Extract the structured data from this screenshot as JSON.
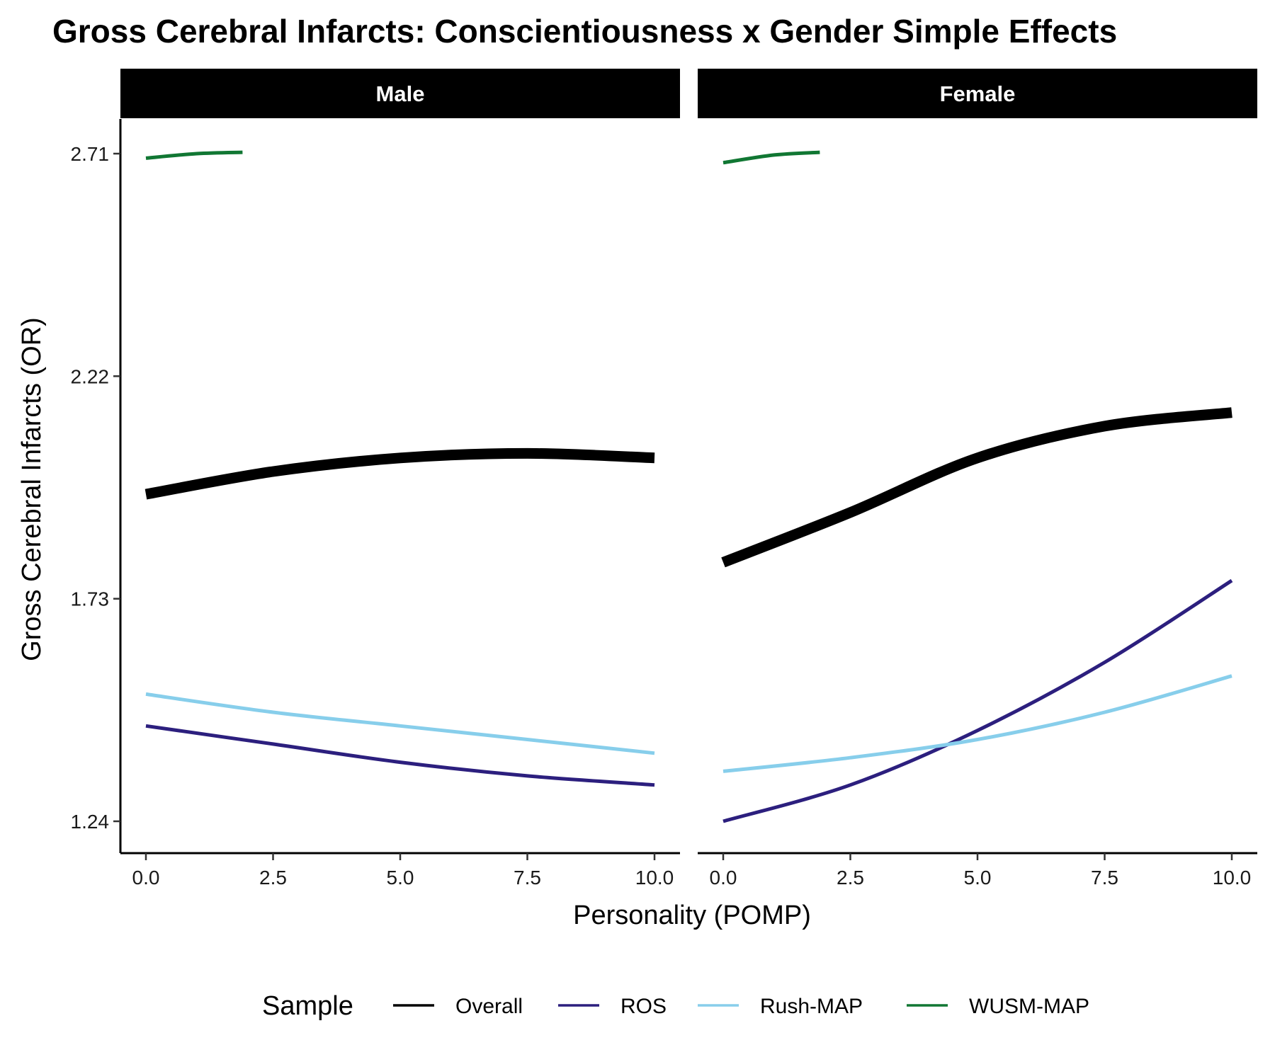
{
  "chart_data": {
    "type": "line",
    "title": "Gross Cerebral Infarcts: Conscientiousness x Gender Simple Effects",
    "xlabel": "Personality (POMP)",
    "ylabel": "Gross Cerebral Infarcts (OR)",
    "xlim": [
      0,
      10
    ],
    "ylim": [
      1.24,
      2.71
    ],
    "x_ticks": [
      "0.0",
      "2.5",
      "5.0",
      "7.5",
      "10.0"
    ],
    "y_ticks": [
      "1.24",
      "1.73",
      "2.22",
      "2.71"
    ],
    "legend": {
      "title": "Sample",
      "position": "bottom"
    },
    "panels": [
      {
        "name": "Male",
        "series": [
          {
            "name": "Overall",
            "color": "#000000",
            "x": [
              0,
              2.5,
              5,
              7.5,
              10
            ],
            "y": [
              1.96,
              2.01,
              2.04,
              2.05,
              2.04
            ]
          },
          {
            "name": "ROS",
            "color": "#2c1f7e",
            "x": [
              0,
              2.5,
              5,
              7.5,
              10
            ],
            "y": [
              1.45,
              1.41,
              1.37,
              1.34,
              1.32
            ]
          },
          {
            "name": "Rush-MAP",
            "color": "#87ceeb",
            "x": [
              0,
              2.5,
              5,
              7.5,
              10
            ],
            "y": [
              1.52,
              1.48,
              1.45,
              1.42,
              1.39
            ]
          },
          {
            "name": "WUSM-MAP",
            "color": "#117733",
            "x": [
              0,
              1,
              1.9
            ],
            "y": [
              2.7,
              2.71,
              2.713
            ]
          }
        ]
      },
      {
        "name": "Female",
        "series": [
          {
            "name": "Overall",
            "color": "#000000",
            "x": [
              0,
              2.5,
              5,
              7.5,
              10
            ],
            "y": [
              1.81,
              1.92,
              2.04,
              2.11,
              2.14
            ]
          },
          {
            "name": "ROS",
            "color": "#2c1f7e",
            "x": [
              0,
              2.5,
              5,
              7.5,
              10
            ],
            "y": [
              1.24,
              1.32,
              1.44,
              1.59,
              1.77
            ]
          },
          {
            "name": "Rush-MAP",
            "color": "#87ceeb",
            "x": [
              0,
              2.5,
              5,
              7.5,
              10
            ],
            "y": [
              1.35,
              1.38,
              1.42,
              1.48,
              1.56
            ]
          },
          {
            "name": "WUSM-MAP",
            "color": "#117733",
            "x": [
              0,
              1,
              1.9
            ],
            "y": [
              2.69,
              2.707,
              2.713
            ]
          }
        ]
      }
    ]
  }
}
